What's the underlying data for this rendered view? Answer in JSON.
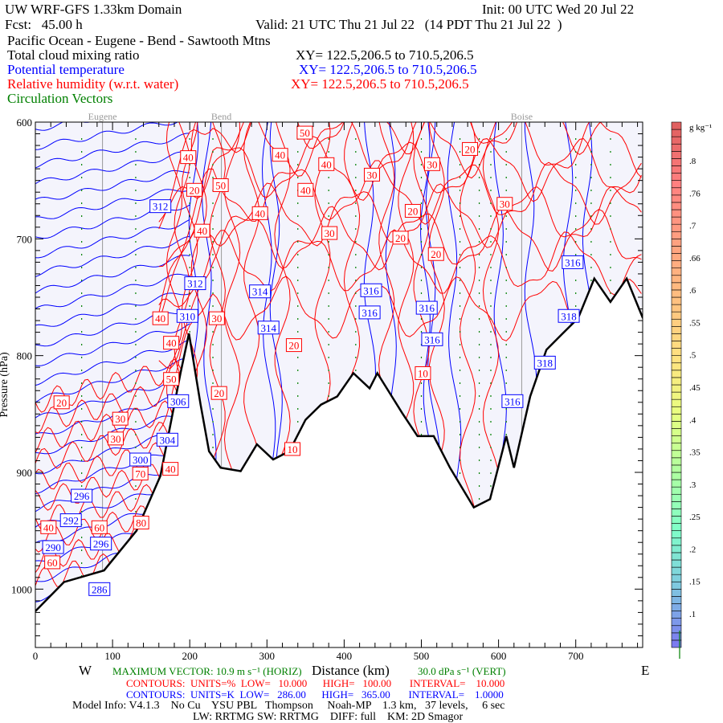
{
  "header": {
    "title": "UW WRF-GFS 1.33km Domain",
    "init": "Init: 00 UTC Wed 20 Jul 22",
    "fcst": "Fcst:   45.00 h",
    "valid": "Valid: 21 UTC Thu 21 Jul 22   (14 PDT Thu 21 Jul 22  )",
    "route": "Pacific Ocean - Eugene - Bend - Sawtooth Mtns",
    "fields": [
      {
        "name": "Total cloud mixing ratio",
        "xy": "XY= 122.5,206.5 to 710.5,206.5",
        "color": "#000000"
      },
      {
        "name": "Potential temperature",
        "xy": "XY= 122.5,206.5 to 710.5,206.5",
        "color": "#0000ff"
      },
      {
        "name": "Relative humidity (w.r.t. water)",
        "xy": "XY= 122.5,206.5 to 710.5,206.5",
        "color": "#ff0000"
      },
      {
        "name": "Circulation Vectors",
        "xy": "",
        "color": "#008000"
      }
    ]
  },
  "footer": {
    "max_vector": "MAXIMUM VECTOR: 10.9 m s⁻¹ (HORIZ)",
    "max_vector_vert": "30.0 dPa s⁻¹ (VERT)",
    "rh_contours": "CONTOURS:  UNITS=%  LOW=   10.000      HIGH=   100.00       INTERVAL=    10.000",
    "theta_contours": "CONTOURS:  UNITS=K  LOW=   286.00      HIGH=   365.00       INTERVAL=    1.0000",
    "model_info": "Model Info: V4.1.3    No Cu    YSU PBL   Thompson     Noah-MP    1.3 km,   37 levels,     6 sec",
    "model_info2": "LW: RRTMG SW: RRTMG    DIFF: full    KM: 2D Smagor",
    "west": "W",
    "east": "E"
  },
  "chart_data": {
    "type": "cross-section",
    "xlabel": "Distance (km)",
    "ylabel": "Pressure (hPa)",
    "xlim": [
      0,
      787
    ],
    "ylim": [
      1050,
      600
    ],
    "xticks": [
      0,
      100,
      200,
      300,
      400,
      500,
      600,
      700
    ],
    "yticks": [
      600,
      700,
      800,
      900,
      1000
    ],
    "locations": [
      {
        "name": "Eugene",
        "km": 87
      },
      {
        "name": "Bend",
        "km": 241
      },
      {
        "name": "Boise",
        "km": 630
      }
    ],
    "terrain_hpa": [
      [
        0,
        1019
      ],
      [
        37,
        994
      ],
      [
        89,
        984
      ],
      [
        131,
        950
      ],
      [
        162,
        903
      ],
      [
        188,
        815
      ],
      [
        199,
        781
      ],
      [
        214,
        842
      ],
      [
        225,
        882
      ],
      [
        240,
        896
      ],
      [
        266,
        899
      ],
      [
        287,
        876
      ],
      [
        308,
        889
      ],
      [
        329,
        882
      ],
      [
        350,
        855
      ],
      [
        370,
        842
      ],
      [
        391,
        835
      ],
      [
        412,
        815
      ],
      [
        433,
        828
      ],
      [
        443,
        815
      ],
      [
        475,
        849
      ],
      [
        495,
        869
      ],
      [
        516,
        869
      ],
      [
        537,
        896
      ],
      [
        568,
        930
      ],
      [
        589,
        923
      ],
      [
        610,
        869
      ],
      [
        620,
        896
      ],
      [
        641,
        835
      ],
      [
        662,
        795
      ],
      [
        683,
        781
      ],
      [
        703,
        768
      ],
      [
        724,
        734
      ],
      [
        745,
        754
      ],
      [
        766,
        734
      ],
      [
        787,
        768
      ]
    ],
    "theta_labels": [
      [
        162,
        672,
        "312"
      ],
      [
        207,
        738,
        "312"
      ],
      [
        197,
        766,
        "310"
      ],
      [
        291,
        745,
        "314"
      ],
      [
        302,
        776,
        "314"
      ],
      [
        435,
        744,
        "316"
      ],
      [
        433,
        763,
        "316"
      ],
      [
        507,
        759,
        "316"
      ],
      [
        514,
        786,
        "316"
      ],
      [
        696,
        720,
        "316"
      ],
      [
        691,
        766,
        "318"
      ],
      [
        660,
        806,
        "318"
      ],
      [
        618,
        839,
        "316"
      ],
      [
        185,
        839,
        "306"
      ],
      [
        171,
        872,
        "304"
      ],
      [
        136,
        889,
        "300"
      ],
      [
        60,
        920,
        "296"
      ],
      [
        85,
        961,
        "296"
      ],
      [
        23,
        964,
        "290"
      ],
      [
        46,
        941,
        "292"
      ],
      [
        83,
        1000,
        "286"
      ]
    ],
    "rh_labels": [
      [
        349,
        609,
        "50"
      ],
      [
        198,
        630,
        "40"
      ],
      [
        317,
        628,
        "40"
      ],
      [
        377,
        636,
        "40"
      ],
      [
        350,
        658,
        "40"
      ],
      [
        240,
        654,
        "50"
      ],
      [
        206,
        658,
        "20"
      ],
      [
        291,
        678,
        "40"
      ],
      [
        216,
        693,
        "40"
      ],
      [
        381,
        695,
        "30"
      ],
      [
        473,
        699,
        "20"
      ],
      [
        489,
        676,
        "20"
      ],
      [
        436,
        645,
        "30"
      ],
      [
        514,
        636,
        "30"
      ],
      [
        563,
        623,
        "20"
      ],
      [
        608,
        670,
        "30"
      ],
      [
        519,
        713,
        "20"
      ],
      [
        235,
        768,
        "30"
      ],
      [
        335,
        791,
        "20"
      ],
      [
        502,
        815,
        "10"
      ],
      [
        238,
        832,
        "20"
      ],
      [
        34,
        840,
        "20"
      ],
      [
        110,
        854,
        "30"
      ],
      [
        104,
        871,
        "30"
      ],
      [
        175,
        897,
        "40"
      ],
      [
        136,
        901,
        "70"
      ],
      [
        83,
        947,
        "60"
      ],
      [
        137,
        943,
        "80"
      ],
      [
        17,
        947,
        "40"
      ],
      [
        22,
        977,
        "60"
      ],
      [
        333,
        880,
        "10"
      ],
      [
        162,
        768,
        "40"
      ],
      [
        176,
        789,
        "40"
      ],
      [
        176,
        820,
        "50"
      ]
    ],
    "colorbar": {
      "units": "g kg⁻¹",
      "labels": [
        ".8",
        ".76",
        ".7",
        ".66",
        ".6",
        ".55",
        ".5",
        ".45",
        ".4",
        ".35",
        ".3",
        ".25",
        ".2",
        ".15",
        ".1"
      ],
      "colors": [
        "#7b7bf0",
        "#7fc8e0",
        "#80ffc8",
        "#b0ffa0",
        "#e8ff80",
        "#ffe080",
        "#ffc080",
        "#ffa080",
        "#ff8080",
        "#e06060"
      ]
    },
    "colors": {
      "theta": "#0000ff",
      "rh": "#ff0000",
      "vectors": "#008000",
      "cloud_min": "#f4f4fc"
    }
  }
}
